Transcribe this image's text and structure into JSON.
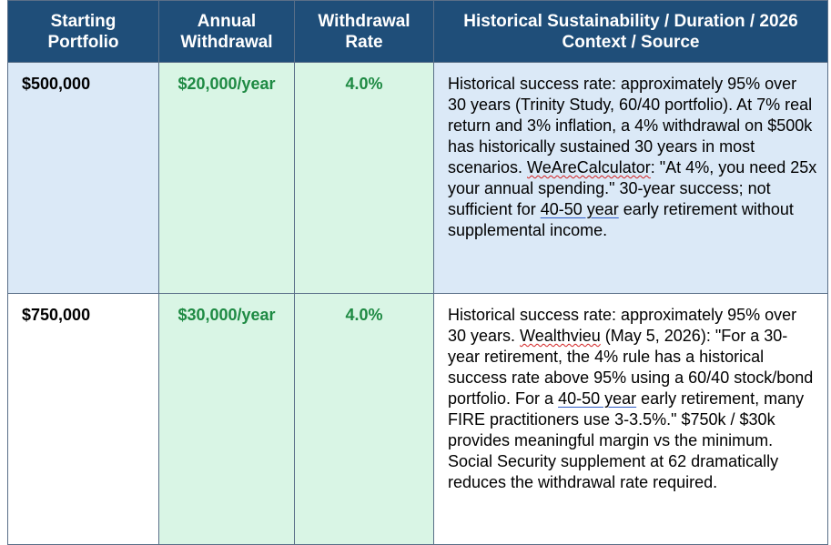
{
  "headers": {
    "col1_line1": "Starting",
    "col1_line2": "Portfolio",
    "col2_line1": "Annual",
    "col2_line2": "Withdrawal",
    "col3_line1": "Withdrawal",
    "col3_line2": "Rate",
    "col4_line1": "Historical Sustainability / Duration / 2026",
    "col4_line2": "Context / Source"
  },
  "rows": [
    {
      "portfolio": "$500,000",
      "annual": "$20,000/year",
      "rate": "4.0%",
      "ctx": {
        "a": "Historical success rate: approximately 95% over 30 years (Trinity Study, 60/40 portfolio). At 7% real return and 3% inflation, a 4% withdrawal on $500k has historically sustained 30 years in most scenarios. ",
        "b": "WeAreCalculator",
        "c": ": \"At 4%, you need 25x your annual spending.\" 30-year success; not sufficient for ",
        "d": "40-50 year",
        "e": " early retirement without supplemental income."
      }
    },
    {
      "portfolio": "$750,000",
      "annual": "$30,000/year",
      "rate": "4.0%",
      "ctx": {
        "a": "Historical success rate: approximately 95% over 30 years. ",
        "b": "Wealthvieu",
        "c": " (May 5, 2026): \"For a 30-year retirement, the 4% rule has a historical success rate above 95% using a 60/40 stock/bond portfolio. For a ",
        "d": "40-50 year",
        "e": " early retirement, many FIRE practitioners use 3-3.5%.\" $750k / $30k provides meaningful margin vs the minimum. Social Security supplement at 62 dramatically reduces the withdrawal rate required."
      }
    }
  ],
  "colors": {
    "header_bg": "#1f4e79",
    "header_text": "#ffffff",
    "green_text": "#1e8a43",
    "green_fill": "#d9f5e5",
    "blue_fill": "#dbe9f7"
  }
}
